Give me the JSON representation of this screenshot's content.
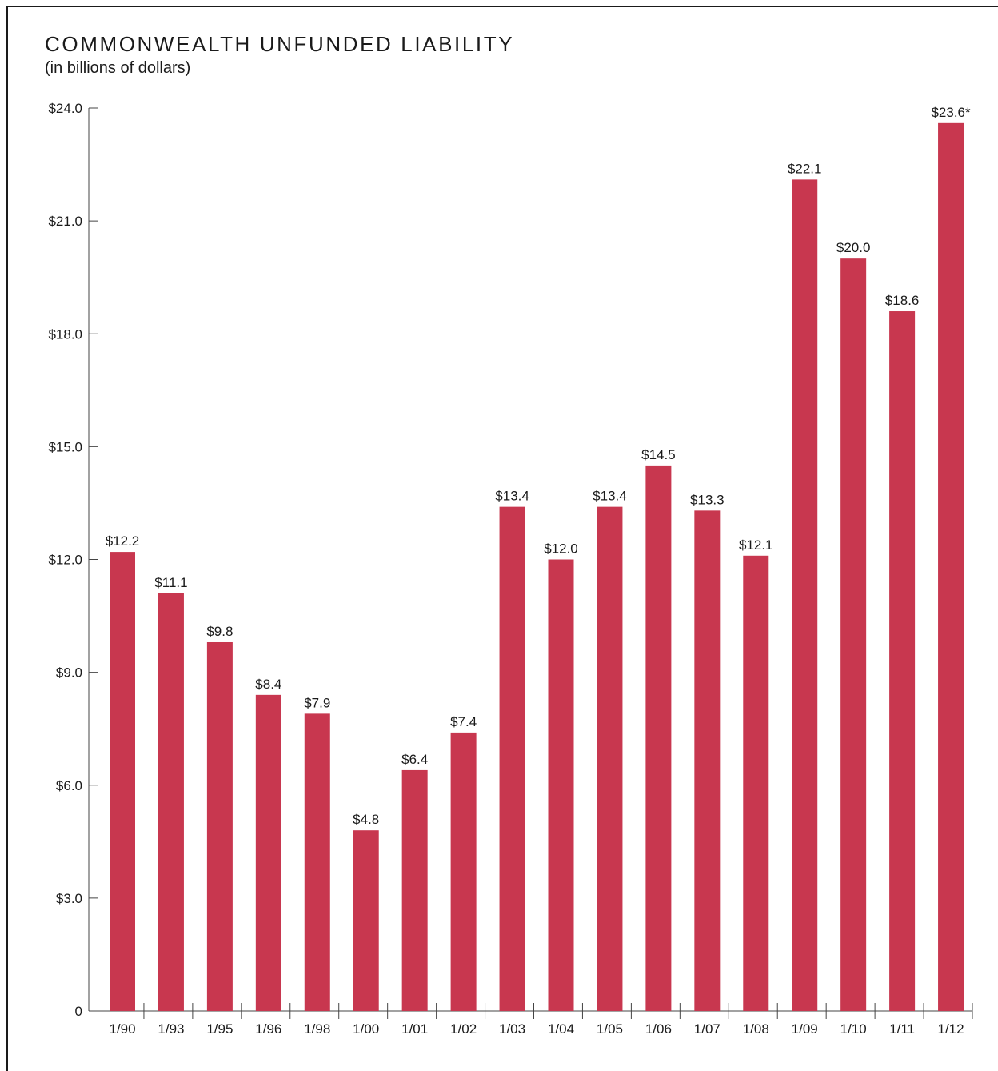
{
  "chart_data": {
    "type": "bar",
    "title": "COMMONWEALTH UNFUNDED LIABILITY",
    "subtitle": "(in billions of dollars)",
    "xlabel": "",
    "ylabel": "",
    "ylim": [
      0,
      24
    ],
    "yticks": [
      {
        "value": 0,
        "label": "0"
      },
      {
        "value": 3,
        "label": "$3.0"
      },
      {
        "value": 6,
        "label": "$6.0"
      },
      {
        "value": 9,
        "label": "$9.0"
      },
      {
        "value": 12,
        "label": "$12.0"
      },
      {
        "value": 15,
        "label": "$15.0"
      },
      {
        "value": 18,
        "label": "$18.0"
      },
      {
        "value": 21,
        "label": "$21.0"
      },
      {
        "value": 24,
        "label": "$24.0"
      }
    ],
    "grid": false,
    "legend": "none",
    "bar_color": "#c8374f",
    "categories": [
      "1/90",
      "1/93",
      "1/95",
      "1/96",
      "1/98",
      "1/00",
      "1/01",
      "1/02",
      "1/03",
      "1/04",
      "1/05",
      "1/06",
      "1/07",
      "1/08",
      "1/09",
      "1/10",
      "1/11",
      "1/12"
    ],
    "values": [
      12.2,
      11.1,
      9.8,
      8.4,
      7.9,
      4.8,
      6.4,
      7.4,
      13.4,
      12.0,
      13.4,
      14.5,
      13.3,
      12.1,
      22.1,
      20.0,
      18.6,
      23.6
    ],
    "data_labels": [
      "$12.2",
      "$11.1",
      "$9.8",
      "$8.4",
      "$7.9",
      "$4.8",
      "$6.4",
      "$7.4",
      "$13.4",
      "$12.0",
      "$13.4",
      "$14.5",
      "$13.3",
      "$12.1",
      "$22.1",
      "$20.0",
      "$18.6",
      "$23.6*"
    ]
  }
}
